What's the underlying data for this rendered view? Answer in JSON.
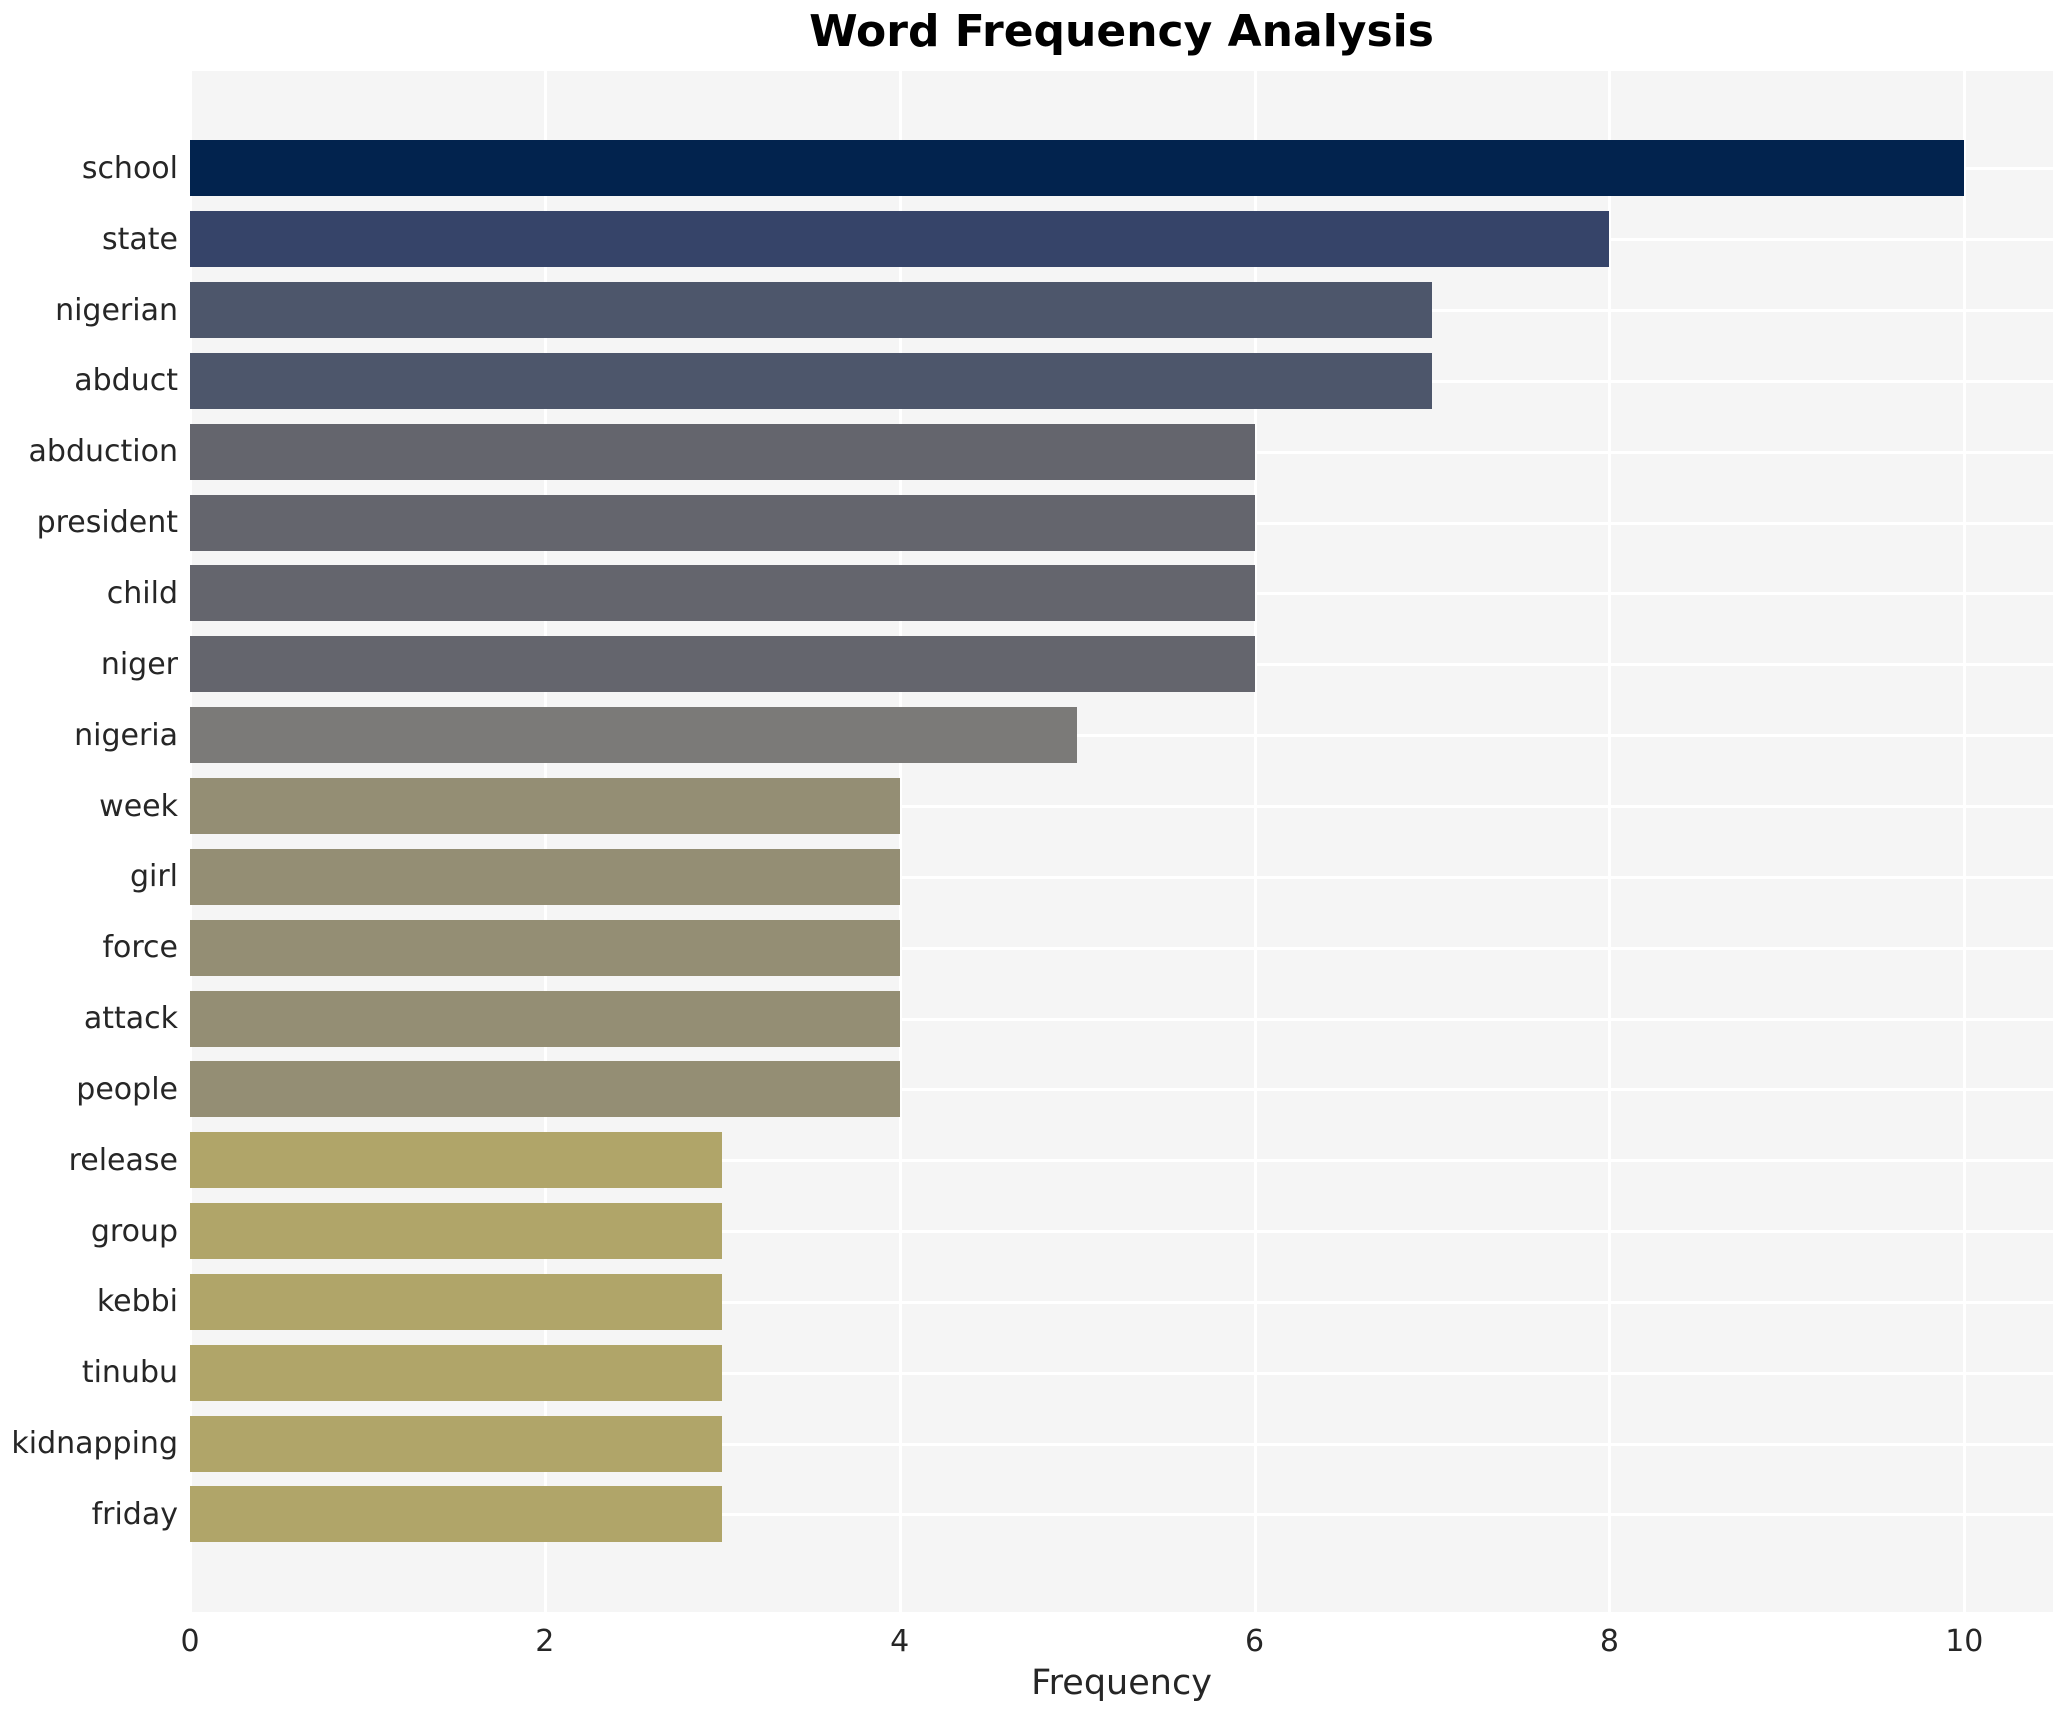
{
  "figure": {
    "title": "Word Frequency Analysis"
  },
  "chart_data": {
    "type": "bar",
    "orientation": "horizontal",
    "title": "Word Frequency Analysis",
    "xlabel": "Frequency",
    "ylabel": "",
    "xlim": [
      0,
      10.5
    ],
    "xticks": [
      0,
      2,
      4,
      6,
      8,
      10
    ],
    "grid": true,
    "legend_position": "none",
    "categories": [
      "school",
      "state",
      "nigerian",
      "abduct",
      "abduction",
      "president",
      "child",
      "niger",
      "nigeria",
      "week",
      "girl",
      "force",
      "attack",
      "people",
      "release",
      "group",
      "kebbi",
      "tinubu",
      "kidnapping",
      "friday"
    ],
    "values": [
      10,
      8,
      7,
      7,
      6,
      6,
      6,
      6,
      5,
      4,
      4,
      4,
      4,
      4,
      3,
      3,
      3,
      3,
      3,
      3
    ],
    "bar_colors": [
      "#02234e",
      "#364469",
      "#4d566b",
      "#4d566b",
      "#64656d",
      "#64656d",
      "#64656d",
      "#64656d",
      "#7b7a78",
      "#948e74",
      "#948e74",
      "#948e74",
      "#948e74",
      "#948e74",
      "#b0a569",
      "#b0a569",
      "#b0a569",
      "#b0a569",
      "#b0a569",
      "#b0a569"
    ],
    "colors": {
      "page_background": "#ffffff",
      "plot_background": "#f5f5f5",
      "grid": "#ffffff",
      "text": "#262626",
      "title_text": "#000000"
    }
  }
}
